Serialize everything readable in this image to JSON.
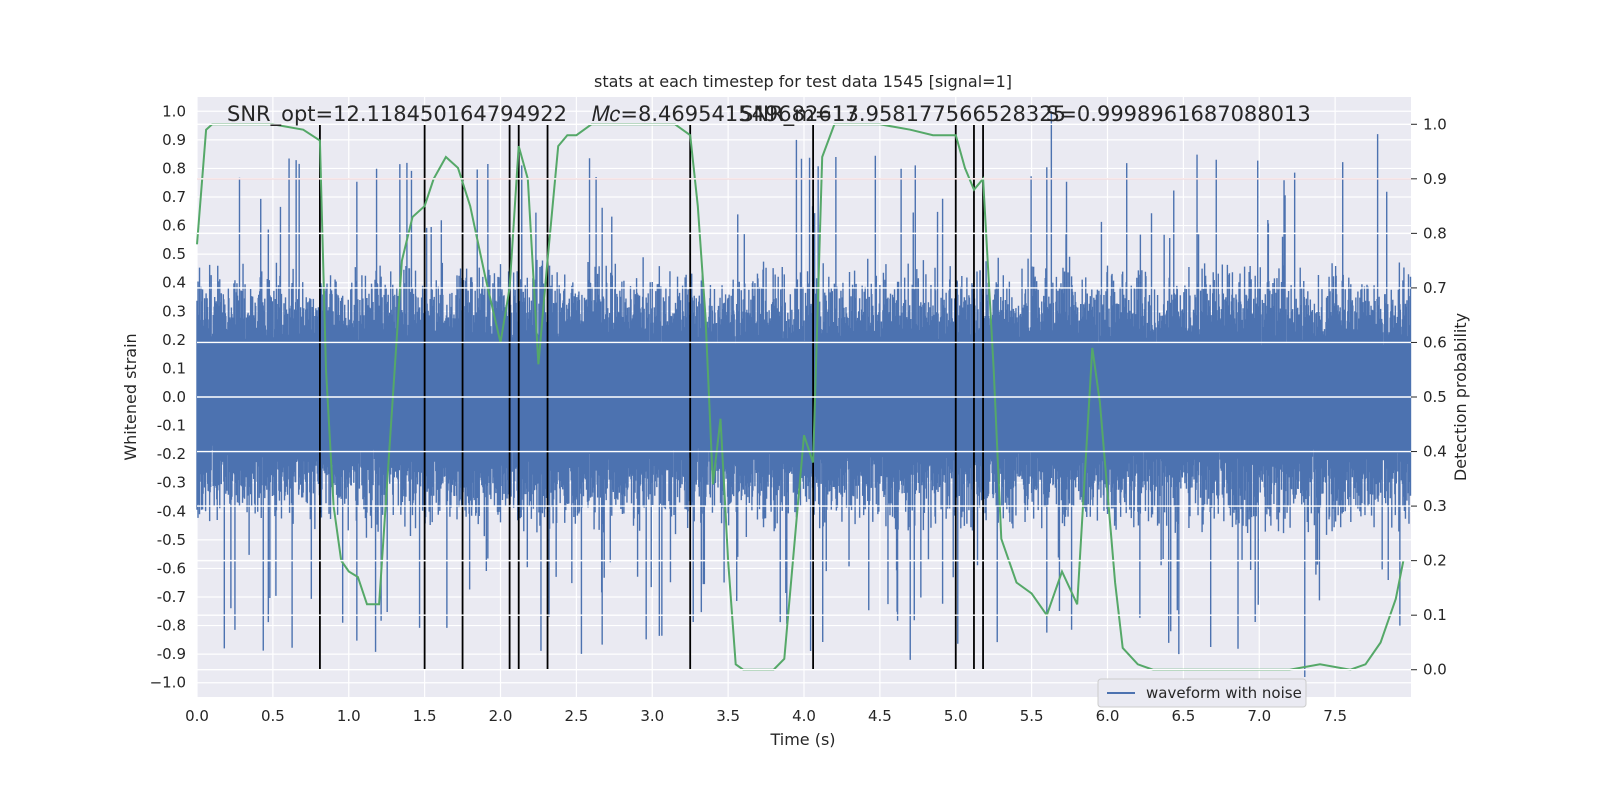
{
  "chart_data": {
    "type": "line",
    "title": "stats at each timestep for test data 1545 [signal=1]",
    "xlabel": "Time (s)",
    "ylabel": "Whitened strain",
    "y2label": "Detection probability",
    "xlim": [
      0.0,
      8.0
    ],
    "ylim": [
      -1.05,
      1.05
    ],
    "y2lim": [
      -0.05,
      1.05
    ],
    "x_ticks": [
      "0.0",
      "0.5",
      "1.0",
      "1.5",
      "2.0",
      "2.5",
      "3.0",
      "3.5",
      "4.0",
      "4.5",
      "5.0",
      "5.5",
      "6.0",
      "6.5",
      "7.0",
      "7.5"
    ],
    "y_ticks": [
      "1.0",
      "0.9",
      "0.8",
      "0.7",
      "0.6",
      "0.5",
      "0.4",
      "0.3",
      "0.2",
      "0.1",
      "0.0",
      "-0.1",
      "-0.2",
      "-0.3",
      "-0.4",
      "-0.5",
      "-0.6",
      "-0.7",
      "-0.8",
      "-0.9",
      "−1.0"
    ],
    "y2_ticks": [
      "1.0",
      "0.9",
      "0.8",
      "0.7",
      "0.6",
      "0.5",
      "0.4",
      "0.3",
      "0.2",
      "0.1",
      "0.0"
    ],
    "annotations": [
      "SNR_opt=12.118450164794922",
      "𝑀𝑐=8.469541549682617",
      "SNR_m=13.958177566528325",
      "S=0.9998961687088013"
    ],
    "grid": true,
    "legend": {
      "position": "lower-right",
      "entries": [
        "waveform with noise"
      ]
    },
    "threshold": {
      "y2": 0.9,
      "color": "#c44e52"
    },
    "event_markers_x": [
      0.81,
      1.5,
      1.75,
      2.06,
      2.12,
      2.31,
      3.25,
      4.06,
      5.0,
      5.12,
      5.18
    ],
    "series": [
      {
        "name": "waveform with noise",
        "axis": "left",
        "color": "#4c72b0",
        "style": "dense noisy waveform",
        "envelope_typical": 0.45,
        "envelope_peak": 1.0
      },
      {
        "axis": "right",
        "color": "#55a868",
        "x": [
          0.0,
          0.06,
          0.1,
          0.3,
          0.5,
          0.7,
          0.81,
          0.85,
          0.9,
          0.95,
          1.0,
          1.06,
          1.12,
          1.2,
          1.35,
          1.42,
          1.5,
          1.56,
          1.64,
          1.72,
          1.8,
          1.9,
          2.0,
          2.06,
          2.12,
          2.18,
          2.25,
          2.31,
          2.38,
          2.44,
          2.5,
          2.6,
          2.7,
          3.0,
          3.15,
          3.25,
          3.3,
          3.35,
          3.4,
          3.45,
          3.5,
          3.55,
          3.6,
          3.7,
          3.8,
          3.87,
          4.0,
          4.06,
          4.12,
          4.2,
          4.3,
          4.5,
          4.7,
          4.85,
          5.0,
          5.06,
          5.12,
          5.18,
          5.25,
          5.3,
          5.4,
          5.5,
          5.6,
          5.7,
          5.8,
          5.9,
          5.95,
          6.05,
          6.1,
          6.2,
          6.3,
          6.5,
          7.0,
          7.2,
          7.4,
          7.6,
          7.7,
          7.8,
          7.9,
          7.95
        ],
        "y": [
          0.78,
          0.99,
          1.0,
          1.0,
          1.0,
          0.99,
          0.97,
          0.55,
          0.3,
          0.2,
          0.18,
          0.17,
          0.12,
          0.12,
          0.75,
          0.83,
          0.85,
          0.9,
          0.94,
          0.92,
          0.85,
          0.72,
          0.6,
          0.7,
          0.96,
          0.9,
          0.56,
          0.75,
          0.96,
          0.98,
          0.98,
          1.0,
          1.0,
          1.0,
          1.0,
          0.98,
          0.85,
          0.65,
          0.34,
          0.46,
          0.2,
          0.01,
          0.0,
          0.0,
          0.0,
          0.02,
          0.43,
          0.38,
          0.94,
          1.0,
          1.0,
          1.0,
          0.99,
          0.98,
          0.98,
          0.92,
          0.88,
          0.9,
          0.55,
          0.24,
          0.16,
          0.14,
          0.1,
          0.18,
          0.12,
          0.59,
          0.49,
          0.16,
          0.04,
          0.01,
          0.0,
          0.0,
          0.0,
          0.0,
          0.01,
          0.0,
          0.01,
          0.05,
          0.13,
          0.2
        ]
      }
    ]
  }
}
